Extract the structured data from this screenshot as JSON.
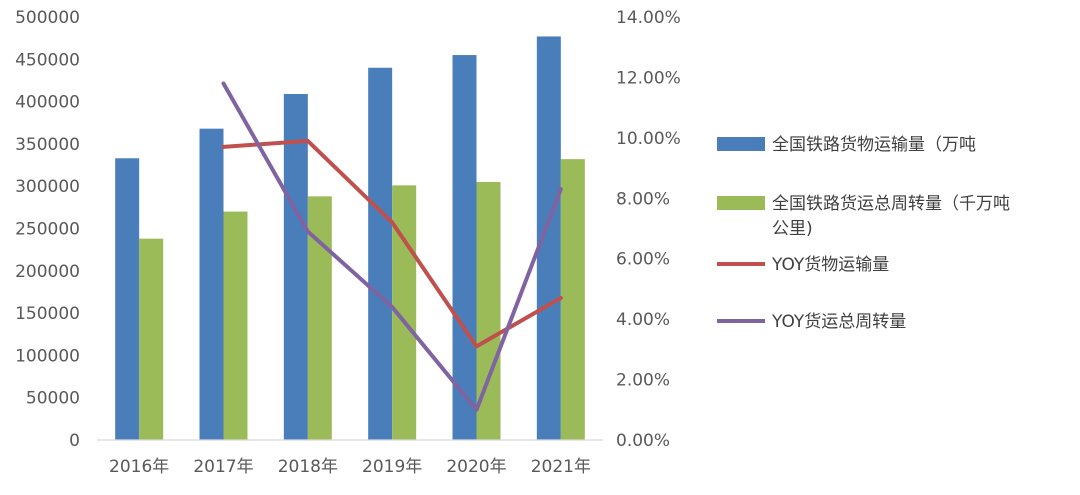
{
  "chart_data": {
    "type": "bar",
    "categories": [
      "2016年",
      "2017年",
      "2018年",
      "2019年",
      "2020年",
      "2021年"
    ],
    "y_left": {
      "ylim": [
        0,
        500000
      ],
      "ticks": [
        "0",
        "50000",
        "100000",
        "150000",
        "200000",
        "250000",
        "300000",
        "350000",
        "400000",
        "450000",
        "500000"
      ]
    },
    "y_right": {
      "ylim": [
        0,
        14
      ],
      "ticks": [
        "0.00%",
        "2.00%",
        "4.00%",
        "6.00%",
        "8.00%",
        "10.00%",
        "12.00%",
        "14.00%"
      ]
    },
    "bar_series": [
      {
        "name": "全国铁路货物运输量（万吨",
        "name_line2": "",
        "color": "#4a7ebb",
        "values": [
          333000,
          368000,
          409000,
          440000,
          455000,
          477000
        ]
      },
      {
        "name": "全国铁路货运总周转量（千万吨",
        "name_line2": "公里)",
        "color": "#9bbb59",
        "values": [
          238000,
          270000,
          288000,
          301000,
          305000,
          332000
        ]
      }
    ],
    "line_series": [
      {
        "name": "YOY货物运输量",
        "color": "#c0504d",
        "values": [
          null,
          9.7,
          9.9,
          7.2,
          3.1,
          4.7
        ]
      },
      {
        "name": "YOY货运总周转量",
        "color": "#8064a2",
        "values": [
          null,
          11.8,
          6.9,
          4.4,
          1.0,
          8.3
        ]
      }
    ],
    "grid": false,
    "legend_position": "right"
  }
}
